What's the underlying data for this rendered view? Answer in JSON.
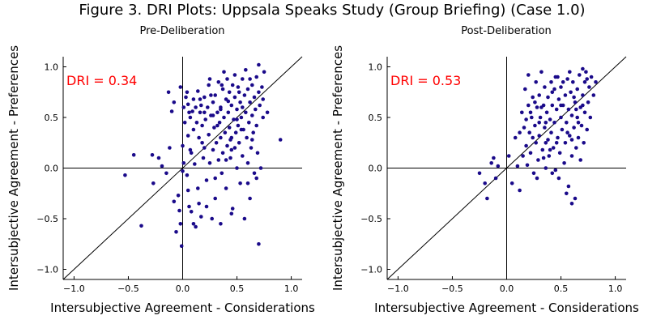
{
  "figure": {
    "title": "Figure 3. DRI Plots: Uppsala Speaks Study (Group Briefing) (Case 1.0)"
  },
  "colors": {
    "point": "#1a0a8a",
    "dri_label": "#ff0000",
    "axis": "#000000"
  },
  "chart_data": [
    {
      "type": "scatter",
      "title": "Pre-Deliberation",
      "xlabel": "Intersubjective Agreement - Considerations",
      "ylabel": "Intersubjective Agreement - Preferences",
      "xlim": [
        -1.1,
        1.1
      ],
      "ylim": [
        -1.1,
        1.1
      ],
      "xticks": [
        -1.0,
        -0.5,
        0.0,
        0.5,
        1.0
      ],
      "yticks": [
        -1.0,
        -0.5,
        0.0,
        0.5,
        1.0
      ],
      "xtick_labels": [
        "−1.0",
        "−0.5",
        "0.0",
        "0.5",
        "1.0"
      ],
      "ytick_labels": [
        "−1.0",
        "−0.5",
        "0.0",
        "0.5",
        "1.0"
      ],
      "annotation": "DRI = 0.34",
      "reference_lines": [
        "y = x",
        "x = 0",
        "y = 0"
      ],
      "grid": false,
      "points": [
        [
          -0.53,
          -0.07
        ],
        [
          -0.45,
          0.13
        ],
        [
          -0.38,
          -0.57
        ],
        [
          -0.28,
          0.13
        ],
        [
          -0.27,
          -0.15
        ],
        [
          -0.22,
          0.1
        ],
        [
          -0.19,
          0.02
        ],
        [
          -0.15,
          -0.05
        ],
        [
          -0.13,
          0.75
        ],
        [
          -0.12,
          0.2
        ],
        [
          -0.1,
          0.56
        ],
        [
          -0.08,
          0.65
        ],
        [
          -0.08,
          -0.33
        ],
        [
          -0.06,
          -0.63
        ],
        [
          -0.04,
          -0.27
        ],
        [
          -0.03,
          -0.42
        ],
        [
          -0.02,
          0.8
        ],
        [
          -0.02,
          -0.55
        ],
        [
          -0.01,
          -0.77
        ],
        [
          0.0,
          0.22
        ],
        [
          0.0,
          -0.03
        ],
        [
          0.01,
          0.6
        ],
        [
          0.01,
          0.05
        ],
        [
          0.02,
          0.45
        ],
        [
          0.03,
          0.7
        ],
        [
          0.04,
          0.75
        ],
        [
          0.04,
          -0.07
        ],
        [
          0.05,
          0.63
        ],
        [
          0.05,
          0.32
        ],
        [
          0.06,
          -0.38
        ],
        [
          0.07,
          0.5
        ],
        [
          0.07,
          0.18
        ],
        [
          0.08,
          -0.43
        ],
        [
          0.09,
          0.56
        ],
        [
          0.1,
          0.68
        ],
        [
          0.1,
          0.38
        ],
        [
          0.11,
          0.04
        ],
        [
          0.12,
          0.6
        ],
        [
          0.12,
          -0.58
        ],
        [
          0.13,
          0.45
        ],
        [
          0.14,
          0.76
        ],
        [
          0.14,
          -0.2
        ],
        [
          0.15,
          0.3
        ],
        [
          0.16,
          0.55
        ],
        [
          0.17,
          0.62
        ],
        [
          0.17,
          -0.48
        ],
        [
          0.18,
          0.42
        ],
        [
          0.19,
          0.1
        ],
        [
          0.2,
          0.7
        ],
        [
          0.2,
          0.2
        ],
        [
          0.21,
          0.48
        ],
        [
          0.22,
          -0.12
        ],
        [
          0.23,
          0.6
        ],
        [
          0.24,
          0.82
        ],
        [
          0.24,
          0.33
        ],
        [
          0.25,
          0.05
        ],
        [
          0.26,
          0.52
        ],
        [
          0.27,
          -0.5
        ],
        [
          0.28,
          0.18
        ],
        [
          0.28,
          0.65
        ],
        [
          0.29,
          0.4
        ],
        [
          0.3,
          0.72
        ],
        [
          0.3,
          -0.3
        ],
        [
          0.31,
          0.25
        ],
        [
          0.32,
          0.55
        ],
        [
          0.33,
          0.85
        ],
        [
          0.33,
          0.08
        ],
        [
          0.34,
          0.45
        ],
        [
          0.35,
          0.6
        ],
        [
          0.35,
          0.3
        ],
        [
          0.36,
          -0.05
        ],
        [
          0.37,
          0.78
        ],
        [
          0.37,
          0.15
        ],
        [
          0.38,
          0.5
        ],
        [
          0.39,
          0.35
        ],
        [
          0.4,
          0.68
        ],
        [
          0.4,
          -0.2
        ],
        [
          0.41,
          0.88
        ],
        [
          0.41,
          0.22
        ],
        [
          0.42,
          0.55
        ],
        [
          0.43,
          0.4
        ],
        [
          0.43,
          0.75
        ],
        [
          0.44,
          0.1
        ],
        [
          0.45,
          0.62
        ],
        [
          0.45,
          0.3
        ],
        [
          0.46,
          0.82
        ],
        [
          0.46,
          -0.4
        ],
        [
          0.47,
          0.48
        ],
        [
          0.48,
          0.2
        ],
        [
          0.48,
          0.7
        ],
        [
          0.49,
          0.35
        ],
        [
          0.5,
          0.58
        ],
        [
          0.5,
          0.0
        ],
        [
          0.51,
          0.8
        ],
        [
          0.51,
          0.42
        ],
        [
          0.52,
          0.25
        ],
        [
          0.53,
          0.65
        ],
        [
          0.53,
          -0.15
        ],
        [
          0.54,
          0.5
        ],
        [
          0.55,
          0.88
        ],
        [
          0.55,
          0.12
        ],
        [
          0.56,
          0.38
        ],
        [
          0.57,
          0.72
        ],
        [
          0.57,
          -0.5
        ],
        [
          0.58,
          0.55
        ],
        [
          0.59,
          0.3
        ],
        [
          0.6,
          0.78
        ],
        [
          0.6,
          0.05
        ],
        [
          0.61,
          0.45
        ],
        [
          0.62,
          0.65
        ],
        [
          0.62,
          -0.3
        ],
        [
          0.63,
          0.2
        ],
        [
          0.64,
          0.82
        ],
        [
          0.64,
          0.52
        ],
        [
          0.65,
          0.35
        ],
        [
          0.66,
          0.7
        ],
        [
          0.66,
          -0.05
        ],
        [
          0.67,
          0.58
        ],
        [
          0.68,
          0.42
        ],
        [
          0.68,
          0.9
        ],
        [
          0.69,
          0.15
        ],
        [
          0.7,
          0.75
        ],
        [
          0.7,
          1.02
        ],
        [
          0.71,
          0.62
        ],
        [
          0.72,
          0.0
        ],
        [
          0.73,
          0.8
        ],
        [
          0.74,
          0.5
        ],
        [
          0.75,
          0.95
        ],
        [
          0.78,
          0.55
        ],
        [
          0.7,
          -0.75
        ],
        [
          0.35,
          -0.55
        ],
        [
          0.22,
          -0.38
        ],
        [
          0.45,
          -0.45
        ],
        [
          0.1,
          -0.55
        ],
        [
          0.6,
          -0.15
        ],
        [
          0.3,
          -0.1
        ],
        [
          0.15,
          -0.35
        ],
        [
          0.05,
          -0.22
        ],
        [
          0.25,
          0.88
        ],
        [
          0.38,
          0.95
        ],
        [
          0.48,
          0.92
        ],
        [
          0.58,
          0.97
        ],
        [
          0.68,
          -0.1
        ],
        [
          0.2,
          0.55
        ],
        [
          0.62,
          0.88
        ],
        [
          0.52,
          0.75
        ],
        [
          0.42,
          0.66
        ],
        [
          0.32,
          0.42
        ],
        [
          0.18,
          0.25
        ],
        [
          0.08,
          0.15
        ],
        [
          0.44,
          0.28
        ],
        [
          0.54,
          0.38
        ],
        [
          0.64,
          0.28
        ],
        [
          0.74,
          0.68
        ],
        [
          0.36,
          0.82
        ],
        [
          0.26,
          0.72
        ],
        [
          0.16,
          0.68
        ],
        [
          0.06,
          0.55
        ],
        [
          0.55,
          0.6
        ],
        [
          0.5,
          0.48
        ],
        [
          0.45,
          0.18
        ],
        [
          0.4,
          0.08
        ],
        [
          0.35,
          0.58
        ],
        [
          0.28,
          0.52
        ],
        [
          0.9,
          0.28
        ]
      ]
    },
    {
      "type": "scatter",
      "title": "Post-Deliberation",
      "xlabel": "Intersubjective Agreement - Considerations",
      "ylabel": "Intersubjective Agreement - Preferences",
      "xlim": [
        -1.1,
        1.1
      ],
      "ylim": [
        -1.1,
        1.1
      ],
      "xticks": [
        -1.0,
        -0.5,
        0.0,
        0.5,
        1.0
      ],
      "yticks": [
        -1.0,
        -0.5,
        0.0,
        0.5,
        1.0
      ],
      "xtick_labels": [
        "−1.0",
        "−0.5",
        "0.0",
        "0.5",
        "1.0"
      ],
      "ytick_labels": [
        "−1.0",
        "−0.5",
        "0.0",
        "0.5",
        "1.0"
      ],
      "annotation": "DRI = 0.53",
      "reference_lines": [
        "y = x",
        "x = 0",
        "y = 0"
      ],
      "grid": false,
      "points": [
        [
          -0.25,
          -0.05
        ],
        [
          -0.2,
          -0.15
        ],
        [
          -0.18,
          -0.3
        ],
        [
          -0.14,
          0.05
        ],
        [
          -0.12,
          0.1
        ],
        [
          -0.1,
          -0.1
        ],
        [
          -0.08,
          0.02
        ],
        [
          0.02,
          0.12
        ],
        [
          0.05,
          -0.15
        ],
        [
          0.08,
          0.3
        ],
        [
          0.1,
          0.02
        ],
        [
          0.12,
          -0.22
        ],
        [
          0.14,
          0.55
        ],
        [
          0.15,
          0.12
        ],
        [
          0.16,
          0.4
        ],
        [
          0.17,
          0.78
        ],
        [
          0.18,
          0.22
        ],
        [
          0.19,
          0.03
        ],
        [
          0.2,
          0.62
        ],
        [
          0.2,
          0.92
        ],
        [
          0.21,
          0.35
        ],
        [
          0.22,
          0.15
        ],
        [
          0.23,
          0.5
        ],
        [
          0.24,
          0.7
        ],
        [
          0.25,
          -0.05
        ],
        [
          0.26,
          0.42
        ],
        [
          0.27,
          0.85
        ],
        [
          0.27,
          0.25
        ],
        [
          0.28,
          0.6
        ],
        [
          0.29,
          0.08
        ],
        [
          0.3,
          0.32
        ],
        [
          0.3,
          0.72
        ],
        [
          0.31,
          0.5
        ],
        [
          0.32,
          0.95
        ],
        [
          0.33,
          0.18
        ],
        [
          0.34,
          0.62
        ],
        [
          0.35,
          0.4
        ],
        [
          0.35,
          0.8
        ],
        [
          0.36,
          0.0
        ],
        [
          0.37,
          0.55
        ],
        [
          0.38,
          0.28
        ],
        [
          0.38,
          0.7
        ],
        [
          0.39,
          0.12
        ],
        [
          0.4,
          0.48
        ],
        [
          0.41,
          0.85
        ],
        [
          0.41,
          0.35
        ],
        [
          0.42,
          0.62
        ],
        [
          0.43,
          0.2
        ],
        [
          0.44,
          0.78
        ],
        [
          0.44,
          0.45
        ],
        [
          0.45,
          -0.02
        ],
        [
          0.46,
          0.58
        ],
        [
          0.47,
          0.3
        ],
        [
          0.47,
          0.9
        ],
        [
          0.48,
          0.68
        ],
        [
          0.49,
          0.15
        ],
        [
          0.5,
          0.5
        ],
        [
          0.5,
          0.8
        ],
        [
          0.51,
          0.38
        ],
        [
          0.52,
          0.62
        ],
        [
          0.53,
          0.05
        ],
        [
          0.54,
          0.72
        ],
        [
          0.54,
          0.25
        ],
        [
          0.55,
          0.45
        ],
        [
          0.56,
          0.88
        ],
        [
          0.57,
          0.58
        ],
        [
          0.57,
          -0.18
        ],
        [
          0.58,
          0.32
        ],
        [
          0.59,
          0.75
        ],
        [
          0.6,
          0.52
        ],
        [
          0.6,
          0.12
        ],
        [
          0.61,
          0.85
        ],
        [
          0.62,
          0.4
        ],
        [
          0.63,
          0.65
        ],
        [
          0.63,
          -0.3
        ],
        [
          0.64,
          0.2
        ],
        [
          0.65,
          0.78
        ],
        [
          0.65,
          0.5
        ],
        [
          0.66,
          0.3
        ],
        [
          0.67,
          0.92
        ],
        [
          0.68,
          0.6
        ],
        [
          0.68,
          0.08
        ],
        [
          0.69,
          0.42
        ],
        [
          0.7,
          0.72
        ],
        [
          0.71,
          0.25
        ],
        [
          0.72,
          0.85
        ],
        [
          0.72,
          0.55
        ],
        [
          0.73,
          0.95
        ],
        [
          0.74,
          0.38
        ],
        [
          0.75,
          0.65
        ],
        [
          0.76,
          0.8
        ],
        [
          0.77,
          0.5
        ],
        [
          0.78,
          0.9
        ],
        [
          0.8,
          0.72
        ],
        [
          0.82,
          0.85
        ],
        [
          0.6,
          -0.35
        ],
        [
          0.55,
          -0.25
        ],
        [
          0.48,
          -0.1
        ],
        [
          0.42,
          -0.05
        ],
        [
          0.36,
          0.25
        ],
        [
          0.3,
          0.45
        ],
        [
          0.24,
          0.3
        ],
        [
          0.45,
          0.9
        ],
        [
          0.58,
          0.95
        ],
        [
          0.7,
          0.98
        ],
        [
          0.62,
          0.7
        ],
        [
          0.52,
          0.85
        ],
        [
          0.42,
          0.75
        ],
        [
          0.32,
          0.6
        ],
        [
          0.22,
          0.55
        ],
        [
          0.66,
          0.45
        ],
        [
          0.56,
          0.35
        ],
        [
          0.46,
          0.25
        ],
        [
          0.36,
          0.45
        ],
        [
          0.26,
          0.65
        ],
        [
          0.5,
          0.62
        ],
        [
          0.64,
          0.58
        ],
        [
          0.74,
          0.88
        ],
        [
          0.4,
          0.18
        ],
        [
          0.34,
          0.1
        ],
        [
          0.28,
          -0.1
        ],
        [
          0.18,
          0.48
        ],
        [
          0.12,
          0.35
        ],
        [
          0.7,
          0.62
        ],
        [
          0.6,
          0.28
        ]
      ]
    }
  ]
}
